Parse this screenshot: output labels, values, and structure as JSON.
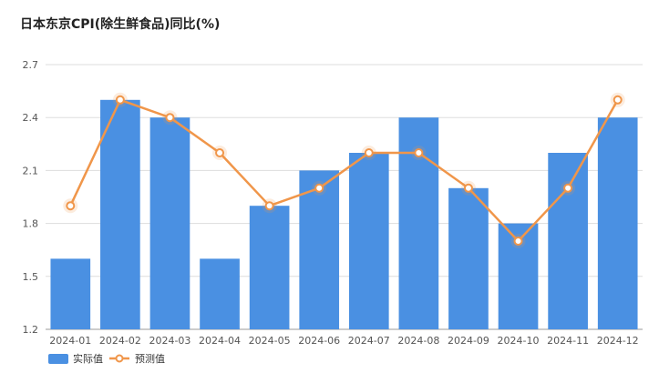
{
  "chart_data": {
    "type": "bar",
    "title": "日本东京CPI(除生鲜食品)同比(%)",
    "categories": [
      "2024-01",
      "2024-02",
      "2024-03",
      "2024-04",
      "2024-05",
      "2024-06",
      "2024-07",
      "2024-08",
      "2024-09",
      "2024-10",
      "2024-11",
      "2024-12"
    ],
    "series": [
      {
        "name": "实际值",
        "type": "bar",
        "color": "#4a90e2",
        "values": [
          1.6,
          2.5,
          2.4,
          1.6,
          1.9,
          2.1,
          2.2,
          2.4,
          2.0,
          1.8,
          2.2,
          2.4
        ]
      },
      {
        "name": "预测值",
        "type": "line",
        "color": "#f0964a",
        "values": [
          1.9,
          2.5,
          2.4,
          2.2,
          1.9,
          2.0,
          2.2,
          2.2,
          2.0,
          1.7,
          2.0,
          2.5
        ]
      }
    ],
    "ylim": [
      1.2,
      2.7
    ],
    "yticks": [
      "1.2",
      "1.5",
      "1.8",
      "2.1",
      "2.4",
      "2.7"
    ],
    "grid": true,
    "legend_position": "bottom-left"
  }
}
